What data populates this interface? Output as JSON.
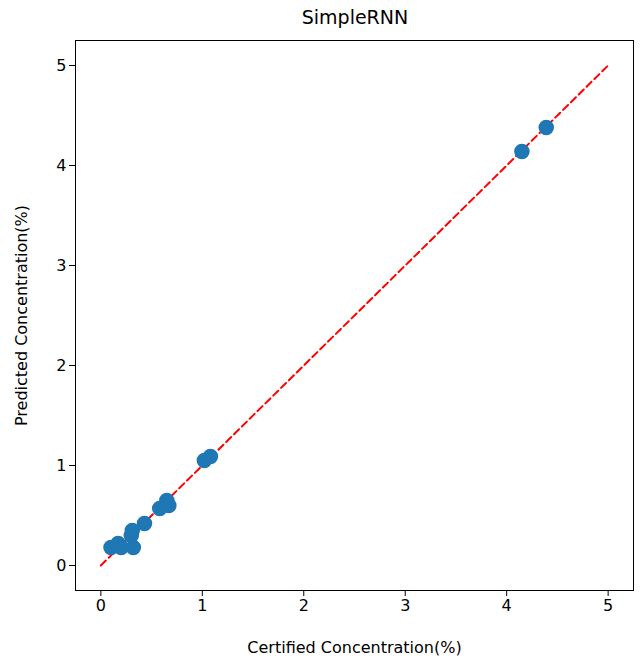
{
  "chart_data": {
    "type": "scatter",
    "title": "SimpleRNN",
    "x_label": "Certified Concentration(%)",
    "y_label": "Predicted Concentration(%)",
    "x": [
      0.1,
      0.17,
      0.2,
      0.3,
      0.31,
      0.32,
      0.43,
      0.58,
      0.65,
      0.67,
      1.02,
      1.08,
      4.15,
      4.39
    ],
    "values": [
      0.18,
      0.22,
      0.18,
      0.3,
      0.35,
      0.18,
      0.42,
      0.57,
      0.65,
      0.6,
      1.05,
      1.09,
      4.14,
      4.38
    ],
    "color": "#1f77b4",
    "marker": "circle",
    "diagonal": {
      "x": [
        0,
        5
      ],
      "values": [
        0,
        5
      ],
      "color": "#ff0000",
      "line_style": "dashed"
    },
    "xlim": [
      -0.25,
      5.25
    ],
    "ylim": [
      -0.25,
      5.25
    ],
    "xticks": [
      0,
      1,
      2,
      3,
      4,
      5
    ],
    "yticks": [
      0,
      1,
      2,
      3,
      4,
      5
    ],
    "grid": false
  }
}
